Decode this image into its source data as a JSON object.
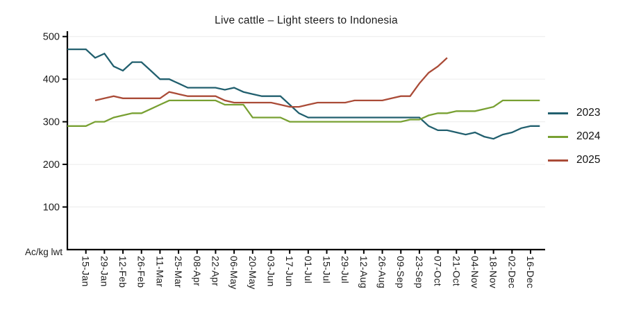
{
  "title": "Live cattle – Light steers to Indonesia",
  "y_axis_label": "Ac/kg lwt",
  "colors": {
    "grid": "#ebebeb",
    "axis": "#000000",
    "tick_text": "#1c1c1c",
    "title_text": "#1c1c1c"
  },
  "legend": {
    "position": "right"
  },
  "chart_data": {
    "type": "line",
    "title": "Live cattle – Light steers to Indonesia",
    "xlabel": "",
    "ylabel": "Ac/kg lwt",
    "ylim": [
      0,
      510
    ],
    "yticks": [
      100,
      200,
      300,
      400,
      500
    ],
    "grid": "horizontal",
    "legend_position": "right",
    "x": [
      "01-Jan",
      "08-Jan",
      "15-Jan",
      "22-Jan",
      "29-Jan",
      "05-Feb",
      "12-Feb",
      "19-Feb",
      "26-Feb",
      "04-Mar",
      "11-Mar",
      "18-Mar",
      "25-Mar",
      "01-Apr",
      "08-Apr",
      "15-Apr",
      "22-Apr",
      "29-Apr",
      "06-May",
      "13-May",
      "20-May",
      "27-May",
      "03-Jun",
      "10-Jun",
      "17-Jun",
      "24-Jun",
      "01-Jul",
      "08-Jul",
      "15-Jul",
      "22-Jul",
      "29-Jul",
      "05-Aug",
      "12-Aug",
      "19-Aug",
      "26-Aug",
      "02-Sep",
      "09-Sep",
      "16-Sep",
      "23-Sep",
      "30-Sep",
      "07-Oct",
      "14-Oct",
      "21-Oct",
      "28-Oct",
      "04-Nov",
      "11-Nov",
      "18-Nov",
      "25-Nov",
      "02-Dec",
      "09-Dec",
      "16-Dec",
      "23-Dec"
    ],
    "x_tick_labels": [
      "15-Jan",
      "29-Jan",
      "12-Feb",
      "26-Feb",
      "11-Mar",
      "25-Mar",
      "08-Apr",
      "22-Apr",
      "06-May",
      "20-May",
      "03-Jun",
      "17-Jun",
      "01-Jul",
      "15-Jul",
      "29-Jul",
      "12-Aug",
      "26-Aug",
      "09-Sep",
      "23-Sep",
      "07-Oct",
      "21-Oct",
      "04-Nov",
      "18-Nov",
      "02-Dec",
      "16-Dec"
    ],
    "series": [
      {
        "name": "2023",
        "color": "#215f6e",
        "values": [
          470,
          470,
          470,
          450,
          460,
          430,
          420,
          440,
          440,
          420,
          400,
          400,
          390,
          380,
          380,
          380,
          380,
          375,
          380,
          370,
          365,
          360,
          360,
          360,
          340,
          320,
          310,
          310,
          310,
          310,
          310,
          310,
          310,
          310,
          310,
          310,
          310,
          310,
          310,
          290,
          280,
          280,
          275,
          270,
          275,
          265,
          260,
          270,
          275,
          285,
          290,
          290
        ]
      },
      {
        "name": "2024",
        "color": "#78a032",
        "values": [
          290,
          290,
          290,
          300,
          300,
          310,
          315,
          320,
          320,
          330,
          340,
          350,
          350,
          350,
          350,
          350,
          350,
          340,
          340,
          340,
          310,
          310,
          310,
          310,
          300,
          300,
          300,
          300,
          300,
          300,
          300,
          300,
          300,
          300,
          300,
          300,
          300,
          305,
          305,
          315,
          320,
          320,
          325,
          325,
          325,
          330,
          335,
          350,
          350,
          350,
          350,
          350
        ]
      },
      {
        "name": "2025",
        "color": "#aa4b37",
        "values": [
          null,
          null,
          null,
          350,
          355,
          360,
          355,
          355,
          355,
          355,
          355,
          370,
          365,
          360,
          360,
          360,
          360,
          350,
          345,
          345,
          345,
          345,
          345,
          340,
          335,
          335,
          340,
          345,
          345,
          345,
          345,
          350,
          350,
          350,
          350,
          355,
          360,
          360,
          390,
          415,
          430,
          450,
          null,
          null,
          null,
          null,
          null,
          null,
          null,
          null,
          null,
          null
        ]
      }
    ]
  }
}
